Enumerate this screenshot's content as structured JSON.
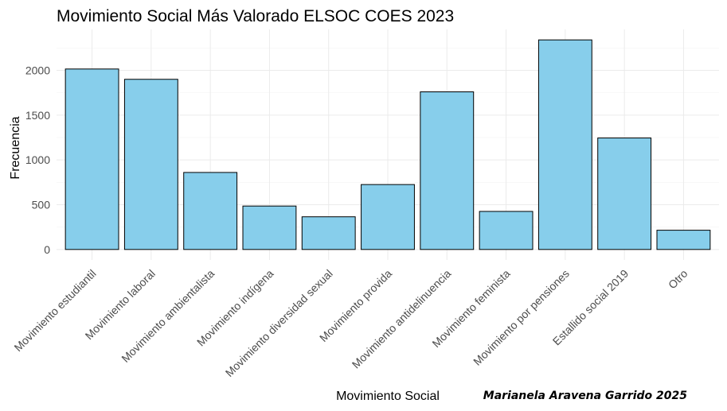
{
  "chart_data": {
    "type": "bar",
    "title": "Movimiento Social Más Valorado ELSOC COES 2023",
    "xlabel": "Movimiento Social",
    "ylabel": "Frecuencia",
    "caption": "Marianela Aravena Garrido 2025",
    "categories": [
      "Movimiento estudiantil",
      "Movimiento laboral",
      "Movimiento ambientalista",
      "Movimiento indígena",
      "Movimiento diversidad sexual",
      "Movimiento provida",
      "Movimiento antidelinuencia",
      "Movimiento feminista",
      "Movimiento por pensiones",
      "Estallido social 2019",
      "Otro"
    ],
    "values": [
      2015,
      1900,
      860,
      485,
      365,
      725,
      1760,
      425,
      2340,
      1245,
      215
    ],
    "yticks": [
      0,
      500,
      1000,
      1500,
      2000
    ],
    "ylim": [
      -117,
      2457
    ],
    "bar_color": "#87ceeb",
    "grid": true,
    "legend": "none"
  }
}
